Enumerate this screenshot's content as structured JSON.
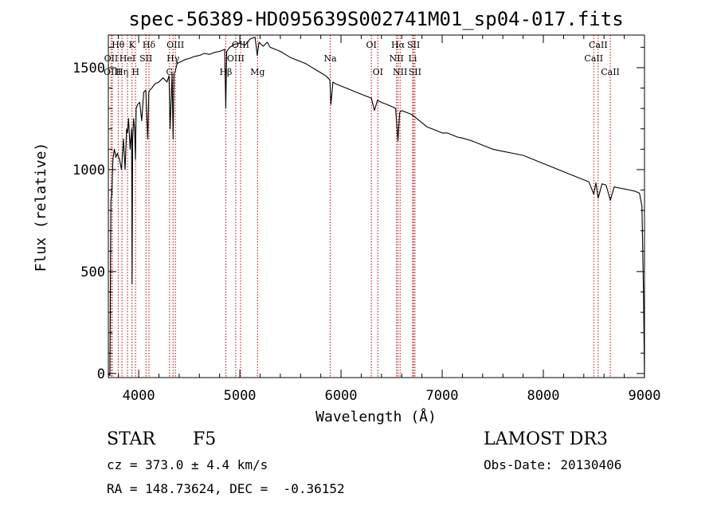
{
  "chart_data": {
    "type": "line",
    "title": "spec-56389-HD095639S002741M01_sp04-017.fits",
    "xlabel": "Wavelength (Å)",
    "ylabel": "Flux (relative)",
    "xlim": [
      3700,
      9000
    ],
    "ylim": [
      -20,
      1660
    ],
    "xticks": [
      4000,
      5000,
      6000,
      7000,
      8000,
      9000
    ],
    "yticks": [
      0,
      500,
      1000,
      1500
    ],
    "series": [
      {
        "name": "spectrum",
        "x": [
          3700,
          3715,
          3725,
          3735,
          3745,
          3760,
          3775,
          3790,
          3810,
          3830,
          3850,
          3865,
          3880,
          3890,
          3900,
          3915,
          3930,
          3935,
          3940,
          3950,
          3960,
          3968,
          3975,
          3990,
          4010,
          4030,
          4050,
          4070,
          4090,
          4100,
          4110,
          4130,
          4160,
          4200,
          4240,
          4280,
          4300,
          4310,
          4330,
          4340,
          4350,
          4360,
          4380,
          4420,
          4460,
          4500,
          4550,
          4600,
          4650,
          4700,
          4750,
          4800,
          4850,
          4861,
          4870,
          4900,
          4950,
          5000,
          5050,
          5100,
          5150,
          5172,
          5190,
          5230,
          5270,
          5300,
          5350,
          5400,
          5450,
          5500,
          5550,
          5600,
          5650,
          5700,
          5750,
          5800,
          5850,
          5890,
          5900,
          5920,
          5950,
          6000,
          6050,
          6100,
          6150,
          6200,
          6250,
          6300,
          6330,
          6360,
          6400,
          6450,
          6500,
          6540,
          6563,
          6580,
          6600,
          6650,
          6700,
          6750,
          6800,
          6850,
          6900,
          6950,
          7000,
          7050,
          7100,
          7150,
          7200,
          7300,
          7400,
          7500,
          7600,
          7700,
          7800,
          7900,
          8000,
          8100,
          8200,
          8300,
          8400,
          8450,
          8498,
          8520,
          8542,
          8580,
          8620,
          8662,
          8700,
          8750,
          8800,
          8850,
          8900,
          8950,
          8975,
          8990,
          9000
        ],
        "y": [
          0,
          -10,
          850,
          880,
          1050,
          1100,
          1060,
          1080,
          1050,
          1000,
          1150,
          1000,
          1200,
          1180,
          1250,
          1100,
          1200,
          440,
          1150,
          1250,
          1200,
          1050,
          1300,
          1320,
          1330,
          1240,
          1380,
          1390,
          1150,
          1380,
          1390,
          1400,
          1420,
          1430,
          1450,
          1430,
          1460,
          1200,
          1470,
          1150,
          1470,
          1480,
          1520,
          1530,
          1540,
          1545,
          1555,
          1560,
          1570,
          1565,
          1575,
          1580,
          1590,
          1300,
          1580,
          1600,
          1615,
          1620,
          1610,
          1640,
          1650,
          1560,
          1625,
          1605,
          1625,
          1600,
          1590,
          1580,
          1565,
          1550,
          1540,
          1530,
          1520,
          1505,
          1490,
          1475,
          1460,
          1440,
          1320,
          1430,
          1420,
          1410,
          1400,
          1390,
          1380,
          1370,
          1360,
          1350,
          1290,
          1340,
          1330,
          1320,
          1310,
          1300,
          1140,
          1280,
          1290,
          1280,
          1270,
          1250,
          1230,
          1210,
          1200,
          1190,
          1180,
          1180,
          1170,
          1160,
          1155,
          1140,
          1120,
          1100,
          1090,
          1080,
          1070,
          1050,
          1030,
          1010,
          990,
          970,
          950,
          940,
          880,
          935,
          860,
          930,
          925,
          850,
          915,
          910,
          905,
          900,
          895,
          885,
          820,
          400,
          -20
        ]
      }
    ],
    "emission_lines": [
      {
        "label": "OII",
        "x": 3727,
        "row": 1
      },
      {
        "label": "Hθ",
        "x": 3797,
        "row": 0
      },
      {
        "label": "OIII",
        "x": 3740,
        "row": 2
      },
      {
        "label": "Hη",
        "x": 3835,
        "row": 2
      },
      {
        "label": "HeI",
        "x": 3889,
        "row": 1
      },
      {
        "label": "K",
        "x": 3934,
        "row": 0
      },
      {
        "label": "H",
        "x": 3969,
        "row": 2
      },
      {
        "label": "SII",
        "x": 4072,
        "row": 1
      },
      {
        "label": "Hδ",
        "x": 4102,
        "row": 0
      },
      {
        "label": "OIII",
        "x": 4363,
        "row": 0
      },
      {
        "label": "Hγ",
        "x": 4340,
        "row": 1
      },
      {
        "label": "G",
        "x": 4305,
        "row": 2
      },
      {
        "label": "Hβ",
        "x": 4861,
        "row": 2
      },
      {
        "label": "OIII",
        "x": 5007,
        "row": 0
      },
      {
        "label": "OIII",
        "x": 4959,
        "row": 1
      },
      {
        "label": "Mg",
        "x": 5175,
        "row": 2
      },
      {
        "label": "Na",
        "x": 5893,
        "row": 1
      },
      {
        "label": "OI",
        "x": 6300,
        "row": 0
      },
      {
        "label": "OI",
        "x": 6364,
        "row": 2
      },
      {
        "label": "Hα",
        "x": 6563,
        "row": 0
      },
      {
        "label": "NII",
        "x": 6548,
        "row": 1
      },
      {
        "label": "NII",
        "x": 6584,
        "row": 2
      },
      {
        "label": "SII",
        "x": 6717,
        "row": 0
      },
      {
        "label": "Li",
        "x": 6708,
        "row": 1
      },
      {
        "label": "SII",
        "x": 6731,
        "row": 2
      },
      {
        "label": "CaII",
        "x": 8498,
        "row": 1
      },
      {
        "label": "CaII",
        "x": 8542,
        "row": 0
      },
      {
        "label": "CaII",
        "x": 8662,
        "row": 2
      }
    ]
  },
  "info": {
    "class": "STAR",
    "subclass": "F5",
    "survey": "LAMOST DR3",
    "cz": "cz = 373.0 ± 4.4 km/s",
    "obs_date": "Obs-Date: 20130406",
    "coords": "RA = 148.73624, DEC =  -0.36152"
  },
  "colors": {
    "line": "#000000",
    "marker": "#c00000"
  }
}
